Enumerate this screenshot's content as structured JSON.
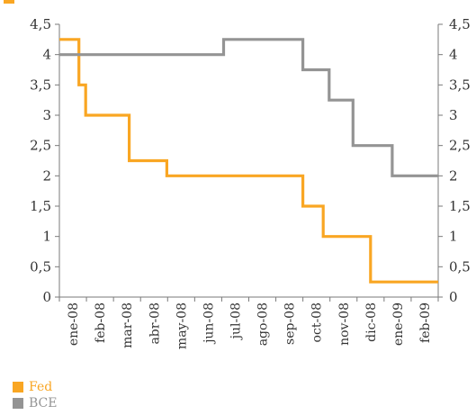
{
  "chart_data": {
    "type": "line",
    "step": true,
    "x_tick_labels": [
      "ene-08",
      "feb-08",
      "mar-08",
      "abr-08",
      "may-08",
      "jun-08",
      "jul-08",
      "ago-08",
      "sep-08",
      "oct-08",
      "nov-08",
      "dic-08",
      "ene-09",
      "feb-09"
    ],
    "y_tick_labels": [
      "0",
      "0,5",
      "1",
      "1,5",
      "2",
      "2,5",
      "3",
      "3,5",
      "4",
      "4,5"
    ],
    "ylim": [
      0,
      4.5
    ],
    "xlim": [
      0,
      14
    ],
    "grid": false,
    "dual_y_axis_same_scale": true,
    "legend_position": "bottom-left",
    "series": [
      {
        "name": "Fed",
        "color": "#F9A623",
        "points": [
          [
            0,
            4.25
          ],
          [
            0.72,
            4.25
          ],
          [
            0.72,
            3.5
          ],
          [
            0.97,
            3.5
          ],
          [
            0.97,
            3.0
          ],
          [
            2.58,
            3.0
          ],
          [
            2.58,
            2.25
          ],
          [
            3.97,
            2.25
          ],
          [
            3.97,
            2.0
          ],
          [
            9.0,
            2.0
          ],
          [
            9.0,
            1.5
          ],
          [
            9.75,
            1.5
          ],
          [
            9.75,
            1.0
          ],
          [
            11.5,
            1.0
          ],
          [
            11.5,
            0.25
          ],
          [
            14,
            0.25
          ]
        ]
      },
      {
        "name": "BCE",
        "color": "#949494",
        "points": [
          [
            0,
            4.0
          ],
          [
            6.07,
            4.0
          ],
          [
            6.07,
            4.25
          ],
          [
            9.0,
            4.25
          ],
          [
            9.0,
            3.75
          ],
          [
            9.97,
            3.75
          ],
          [
            9.97,
            3.25
          ],
          [
            10.85,
            3.25
          ],
          [
            10.85,
            2.5
          ],
          [
            12.3,
            2.5
          ],
          [
            12.3,
            2.0
          ],
          [
            14,
            2.0
          ]
        ]
      }
    ]
  }
}
